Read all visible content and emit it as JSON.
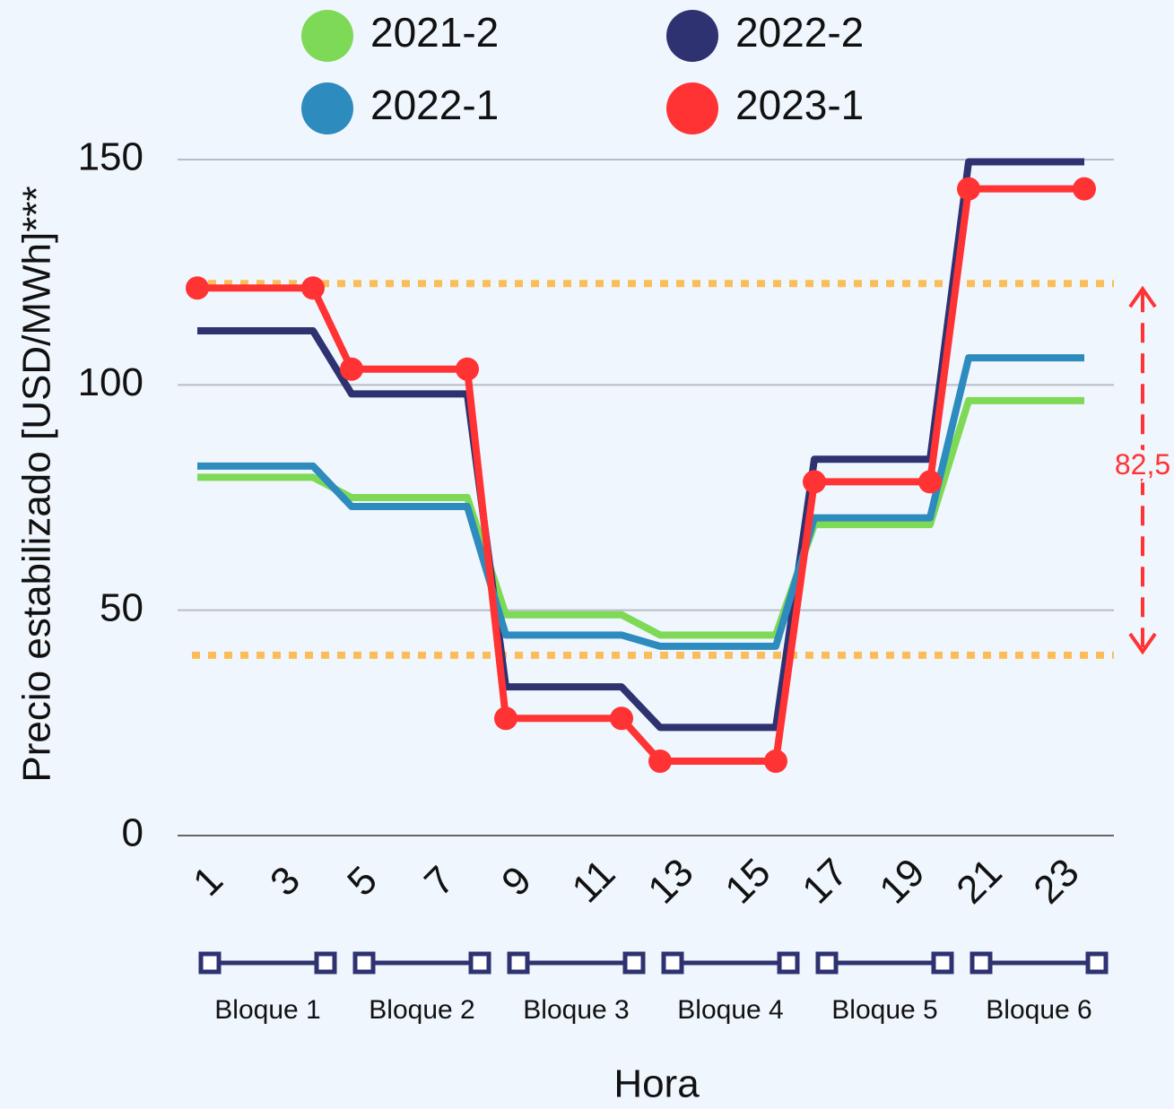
{
  "chart_data": {
    "type": "line",
    "y_label": "Precio estabilizado [USD/MWh]***",
    "x_label": "Hora",
    "categories": [
      1,
      null,
      3,
      null,
      5,
      null,
      7,
      null,
      9,
      null,
      11,
      null,
      13,
      null,
      15,
      null,
      17,
      null,
      19,
      null,
      21,
      null,
      23,
      null
    ],
    "series": [
      {
        "name": "2021-2",
        "color": "#7ed957",
        "values": [
          79.5,
          79.5,
          79.5,
          79.5,
          75,
          75,
          75,
          75,
          49,
          49,
          49,
          49,
          44.5,
          44.5,
          44.5,
          44.5,
          69,
          69,
          69,
          69,
          96.5,
          96.5,
          96.5,
          96.5
        ]
      },
      {
        "name": "2022-2",
        "color": "#2e3270",
        "values": [
          112,
          112,
          112,
          112,
          98,
          98,
          98,
          98,
          33,
          33,
          33,
          33,
          24,
          24,
          24,
          24,
          83.5,
          83.5,
          83.5,
          83.5,
          149.5,
          149.5,
          149.5,
          149.5
        ]
      },
      {
        "name": "2022-1",
        "color": "#2e8bbd",
        "values": [
          82,
          82,
          82,
          82,
          73,
          73,
          73,
          73,
          44.5,
          44.5,
          44.5,
          44.5,
          42,
          42,
          42,
          42,
          70.5,
          70.5,
          70.5,
          70.5,
          106,
          106,
          106,
          106
        ]
      },
      {
        "name": "2023-1",
        "color": "#ff3333",
        "markers": true,
        "values": [
          121.5,
          121.5,
          121.5,
          121.5,
          103.5,
          103.5,
          103.5,
          103.5,
          26,
          26,
          26,
          26,
          16.5,
          16.5,
          16.5,
          16.5,
          78.5,
          78.5,
          78.5,
          78.5,
          143.5,
          143.5,
          143.5,
          143.5
        ]
      }
    ],
    "ylim": [
      0,
      150
    ],
    "yticks": [
      0,
      50,
      100,
      150
    ],
    "grid": true,
    "reference_lines": [
      {
        "value": 122.5,
        "color": "#fbbd5a"
      },
      {
        "value": 40,
        "color": "#fbbd5a"
      }
    ],
    "annotation": {
      "text": "82,5",
      "color": "#ff3333"
    },
    "blocks": [
      {
        "label": "Bloque 1",
        "start": 1,
        "end": 4
      },
      {
        "label": "Bloque 2",
        "start": 5,
        "end": 8
      },
      {
        "label": "Bloque 3",
        "start": 9,
        "end": 12
      },
      {
        "label": "Bloque 4",
        "start": 13,
        "end": 16
      },
      {
        "label": "Bloque 5",
        "start": 17,
        "end": 20
      },
      {
        "label": "Bloque 6",
        "start": 21,
        "end": 24
      }
    ],
    "block_color": "#2e3270"
  }
}
